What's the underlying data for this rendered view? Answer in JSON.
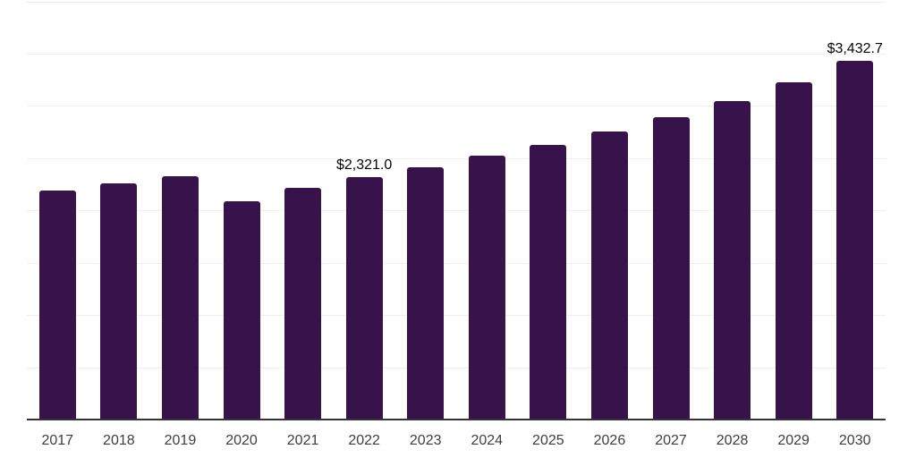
{
  "chart_data": {
    "type": "bar",
    "title": "",
    "xlabel": "",
    "ylabel": "",
    "categories": [
      "2017",
      "2018",
      "2019",
      "2020",
      "2021",
      "2022",
      "2023",
      "2024",
      "2025",
      "2026",
      "2027",
      "2028",
      "2029",
      "2030"
    ],
    "values": [
      2190,
      2258,
      2331,
      2087,
      2215,
      2321.0,
      2415,
      2526,
      2630,
      2751,
      2895,
      3049,
      3229,
      3432.7
    ],
    "data_labels": [
      {
        "category": "2022",
        "text": "$2,321.0"
      },
      {
        "category": "2030",
        "text": "$3,432.7"
      }
    ],
    "ylim": [
      0,
      4000
    ],
    "gridline_step": 500,
    "grid": "horizontal-only",
    "legend": "none",
    "colors": {
      "bar": "#38124A",
      "gridline": "#efefef",
      "axis_line": "#333338",
      "tick_label": "#3e3e3e",
      "data_label": "#050505",
      "background": "#ffffff"
    }
  }
}
